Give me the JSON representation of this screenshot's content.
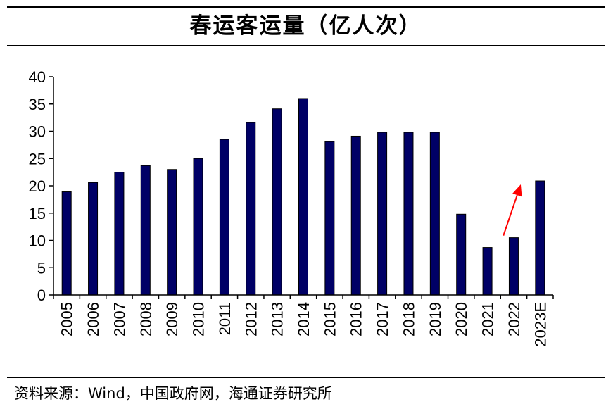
{
  "title": "春运客运量（亿人次）",
  "source": "资料来源：Wind，中国政府网，海通证券研究所",
  "colors": {
    "bar": "#000066",
    "arrow": "#ff0000",
    "axis": "#000000"
  },
  "chart_data": {
    "type": "bar",
    "title": "春运客运量（亿人次）",
    "xlabel": "",
    "ylabel": "",
    "categories": [
      "2005",
      "2006",
      "2007",
      "2008",
      "2009",
      "2010",
      "2011",
      "2012",
      "2013",
      "2014",
      "2015",
      "2016",
      "2017",
      "2018",
      "2019",
      "2020",
      "2021",
      "2022",
      "2023E"
    ],
    "values": [
      18.9,
      20.6,
      22.5,
      23.7,
      23.0,
      25.0,
      28.5,
      31.6,
      34.1,
      36.0,
      28.1,
      29.1,
      29.8,
      29.8,
      29.8,
      14.8,
      8.7,
      10.5,
      20.9
    ],
    "ylim": [
      0,
      40
    ],
    "yticks": [
      0,
      5,
      10,
      15,
      20,
      25,
      30,
      35,
      40
    ],
    "grid": false,
    "legend": "none",
    "annotations": [
      {
        "type": "arrow",
        "color": "red",
        "from": {
          "x": "2021",
          "y": 10.5
        },
        "to": {
          "x": "2022",
          "y": 20
        }
      }
    ]
  }
}
